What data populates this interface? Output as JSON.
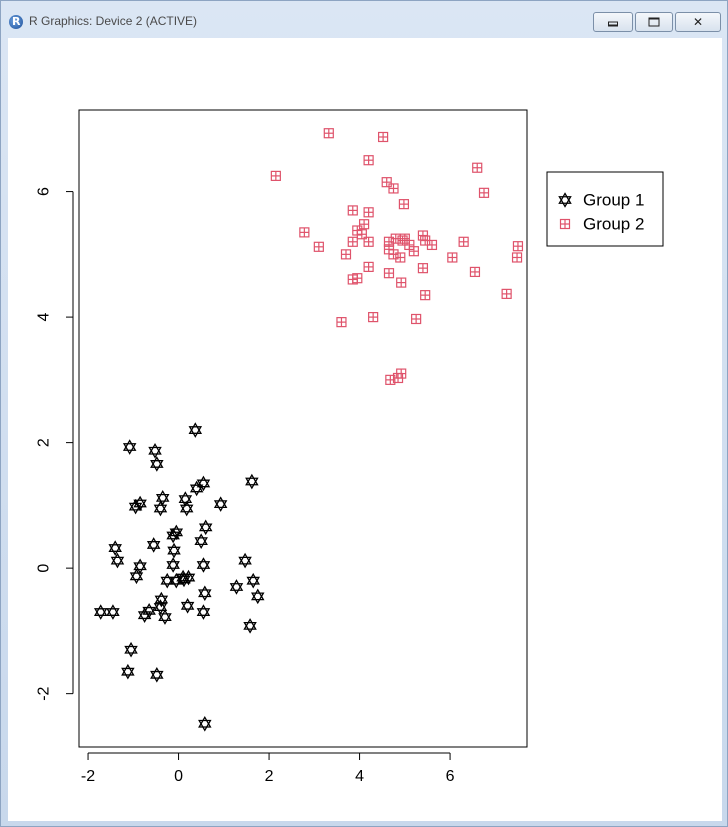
{
  "window": {
    "title": "R Graphics: Device 2 (ACTIVE)",
    "buttons": [
      "minimize-icon",
      "maximize-icon",
      "close-icon"
    ]
  },
  "chart_data": {
    "type": "scatter",
    "title": "",
    "xlabel": "",
    "ylabel": "",
    "xlim": [
      -2.2,
      7.7
    ],
    "ylim": [
      -2.85,
      7.3
    ],
    "xticks": [
      -2,
      0,
      2,
      4,
      6
    ],
    "yticks": [
      -2,
      0,
      2,
      4,
      6
    ],
    "legend": {
      "position": "top-right",
      "entries": [
        "Group 1",
        "Group 2"
      ]
    },
    "series": [
      {
        "name": "Group 1",
        "color": "#000000",
        "marker": "star-of-david",
        "points": [
          [
            0.37,
            2.2
          ],
          [
            -1.08,
            1.93
          ],
          [
            -0.52,
            1.87
          ],
          [
            -0.48,
            1.66
          ],
          [
            1.62,
            1.38
          ],
          [
            0.55,
            1.35
          ],
          [
            0.4,
            1.27
          ],
          [
            -0.35,
            1.12
          ],
          [
            0.15,
            1.1
          ],
          [
            -0.85,
            1.03
          ],
          [
            -0.95,
            0.98
          ],
          [
            -0.4,
            0.95
          ],
          [
            0.18,
            0.95
          ],
          [
            0.93,
            1.02
          ],
          [
            0.6,
            0.65
          ],
          [
            -0.05,
            0.57
          ],
          [
            -0.12,
            0.52
          ],
          [
            0.5,
            0.43
          ],
          [
            -0.55,
            0.37
          ],
          [
            -1.4,
            0.32
          ],
          [
            -0.1,
            0.28
          ],
          [
            -1.35,
            0.12
          ],
          [
            1.47,
            0.12
          ],
          [
            -0.85,
            0.03
          ],
          [
            -0.12,
            0.05
          ],
          [
            0.55,
            0.05
          ],
          [
            -0.93,
            -0.13
          ],
          [
            0.1,
            -0.15
          ],
          [
            0.22,
            -0.15
          ],
          [
            0.12,
            -0.18
          ],
          [
            -0.25,
            -0.2
          ],
          [
            -0.05,
            -0.2
          ],
          [
            1.65,
            -0.2
          ],
          [
            1.28,
            -0.3
          ],
          [
            0.58,
            -0.4
          ],
          [
            1.75,
            -0.45
          ],
          [
            -0.38,
            -0.5
          ],
          [
            -0.4,
            -0.62
          ],
          [
            -0.65,
            -0.68
          ],
          [
            -1.72,
            -0.7
          ],
          [
            -1.45,
            -0.7
          ],
          [
            -0.75,
            -0.75
          ],
          [
            0.2,
            -0.6
          ],
          [
            0.55,
            -0.7
          ],
          [
            -0.3,
            -0.78
          ],
          [
            1.58,
            -0.92
          ],
          [
            -1.05,
            -1.3
          ],
          [
            -1.12,
            -1.65
          ],
          [
            -0.48,
            -1.7
          ],
          [
            0.58,
            -2.48
          ]
        ]
      },
      {
        "name": "Group 2",
        "color": "#df536b",
        "marker": "boxed-plus",
        "points": [
          [
            3.32,
            6.93
          ],
          [
            4.52,
            6.87
          ],
          [
            6.6,
            6.38
          ],
          [
            4.2,
            6.5
          ],
          [
            2.15,
            6.25
          ],
          [
            4.6,
            6.15
          ],
          [
            4.75,
            6.05
          ],
          [
            6.75,
            5.98
          ],
          [
            4.98,
            5.8
          ],
          [
            3.85,
            5.7
          ],
          [
            4.2,
            5.67
          ],
          [
            4.1,
            5.48
          ],
          [
            3.95,
            5.38
          ],
          [
            4.05,
            5.32
          ],
          [
            2.78,
            5.35
          ],
          [
            3.85,
            5.2
          ],
          [
            4.2,
            5.2
          ],
          [
            4.65,
            5.2
          ],
          [
            4.8,
            5.25
          ],
          [
            4.95,
            5.22
          ],
          [
            5.1,
            5.15
          ],
          [
            5.0,
            5.25
          ],
          [
            5.4,
            5.3
          ],
          [
            5.45,
            5.22
          ],
          [
            5.6,
            5.15
          ],
          [
            6.3,
            5.2
          ],
          [
            3.1,
            5.12
          ],
          [
            4.65,
            5.08
          ],
          [
            4.75,
            5.0
          ],
          [
            4.9,
            4.95
          ],
          [
            5.2,
            5.05
          ],
          [
            3.7,
            5.0
          ],
          [
            6.05,
            4.95
          ],
          [
            7.5,
            5.13
          ],
          [
            7.48,
            4.95
          ],
          [
            4.2,
            4.8
          ],
          [
            5.4,
            4.78
          ],
          [
            4.65,
            4.7
          ],
          [
            6.55,
            4.72
          ],
          [
            3.85,
            4.6
          ],
          [
            3.95,
            4.62
          ],
          [
            4.92,
            4.55
          ],
          [
            7.25,
            4.37
          ],
          [
            5.45,
            4.35
          ],
          [
            4.3,
            4.0
          ],
          [
            3.6,
            3.92
          ],
          [
            5.25,
            3.97
          ],
          [
            4.92,
            3.1
          ],
          [
            4.85,
            3.03
          ],
          [
            4.68,
            3.0
          ]
        ]
      }
    ],
    "grid": false
  }
}
